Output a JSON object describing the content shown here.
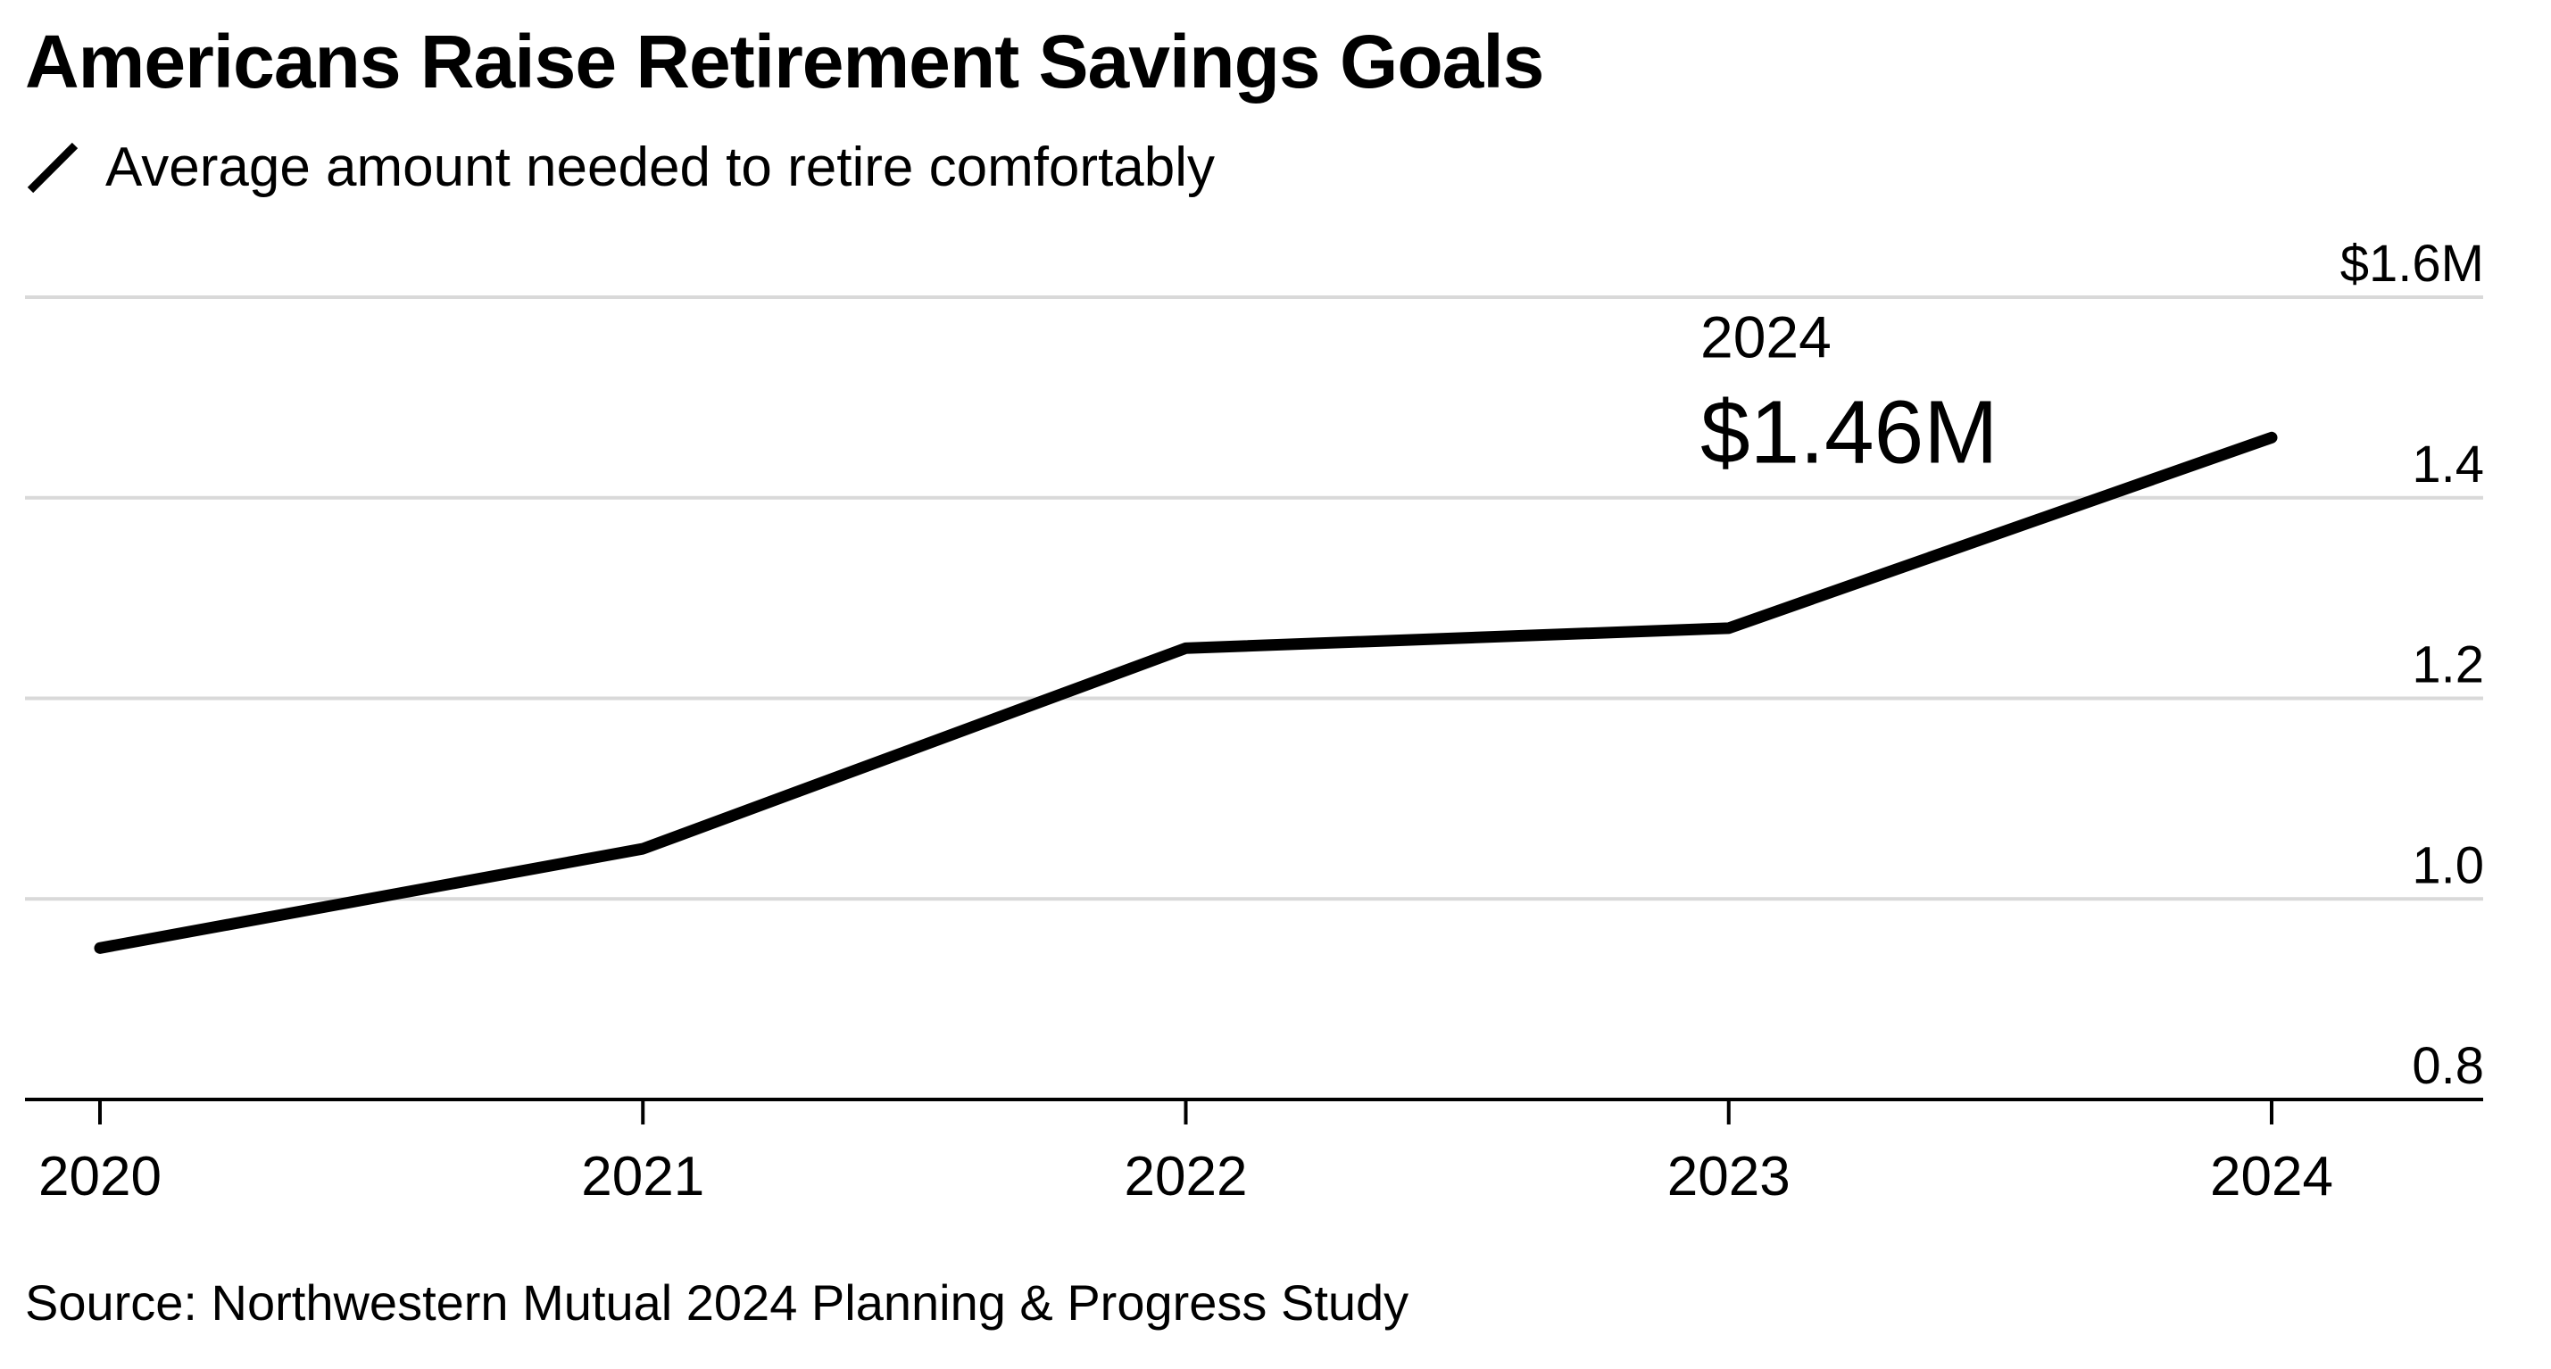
{
  "chart_data": {
    "type": "line",
    "title": "Americans Raise Retirement Savings Goals",
    "source": "Source: Northwestern Mutual 2024 Planning & Progress Study",
    "x": [
      "2020",
      "2021",
      "2022",
      "2023",
      "2024"
    ],
    "series": [
      {
        "name": "Average amount needed to retire comfortably",
        "color": "#000000",
        "values": [
          0.951,
          1.05,
          1.25,
          1.27,
          1.46
        ]
      }
    ],
    "y_ticks": [
      {
        "value": 0.8,
        "label": "0.8"
      },
      {
        "value": 1.0,
        "label": "1.0"
      },
      {
        "value": 1.2,
        "label": "1.2"
      },
      {
        "value": 1.4,
        "label": "1.4"
      },
      {
        "value": 1.6,
        "label": "$1.6M"
      }
    ],
    "ylim": [
      0.8,
      1.6
    ],
    "y_axis_position": "right",
    "grid": true,
    "legend_position": "top-left",
    "annotation": {
      "x": "2024",
      "year_label": "2024",
      "value_label": "$1.46M"
    },
    "colors": {
      "line": "#000000",
      "grid": "#d9d9d9",
      "axis": "#000000"
    }
  }
}
